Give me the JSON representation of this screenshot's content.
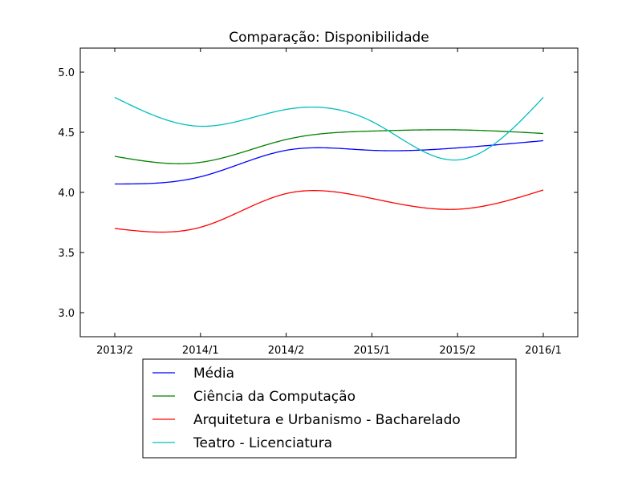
{
  "chart_data": {
    "type": "line",
    "title": "Comparação: Disponibilidade",
    "xlabel": "",
    "ylabel": "",
    "categories": [
      "2013/2",
      "2014/1",
      "2014/2",
      "2015/1",
      "2015/2",
      "2016/1"
    ],
    "ylim": [
      2.8,
      5.2
    ],
    "yticks": [
      "3.0",
      "3.5",
      "4.0",
      "4.5",
      "5.0"
    ],
    "grid": false,
    "legend_position": "below",
    "series": [
      {
        "name": "Média",
        "color": "#0000ff",
        "values": [
          4.07,
          4.13,
          4.35,
          4.35,
          4.37,
          4.43
        ]
      },
      {
        "name": "Ciência da Computação",
        "color": "#008000",
        "values": [
          4.3,
          4.25,
          4.44,
          4.51,
          4.52,
          4.49
        ]
      },
      {
        "name": "Arquitetura e Urbanismo - Bacharelado",
        "color": "#ff0000",
        "values": [
          3.7,
          3.71,
          3.99,
          3.95,
          3.86,
          4.02
        ]
      },
      {
        "name": "Teatro - Licenciatura",
        "color": "#00bfbf",
        "values": [
          4.79,
          4.55,
          4.69,
          4.59,
          4.27,
          4.79
        ]
      }
    ]
  }
}
